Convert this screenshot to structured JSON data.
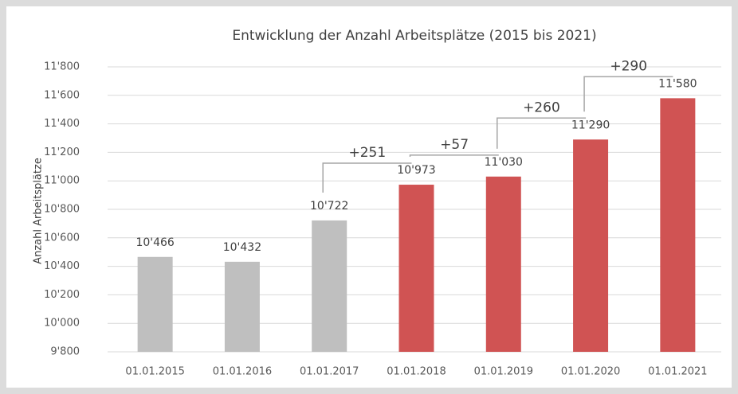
{
  "chart_data": {
    "type": "bar",
    "title": "Entwicklung der Anzahl Arbeitsplätze (2015 bis 2021)",
    "y_label": "Anzahl Arbeitsplätze",
    "categories": [
      "01.01.2015",
      "01.01.2016",
      "01.01.2017",
      "01.01.2018",
      "01.01.2019",
      "01.01.2020",
      "01.01.2021"
    ],
    "values": [
      10466,
      10432,
      10722,
      10973,
      11030,
      11290,
      11580
    ],
    "value_labels": [
      "10'466",
      "10'432",
      "10'722",
      "10'973",
      "11'030",
      "11'290",
      "11'580"
    ],
    "colors": [
      "#bfbfbf",
      "#bfbfbf",
      "#bfbfbf",
      "#d05353",
      "#d05353",
      "#d05353",
      "#d05353"
    ],
    "ylim": [
      9800,
      11800
    ],
    "yticks": [
      {
        "value": 9800,
        "label": "9'800"
      },
      {
        "value": 10000,
        "label": "10'000"
      },
      {
        "value": 10200,
        "label": "10'200"
      },
      {
        "value": 10400,
        "label": "10'400"
      },
      {
        "value": 10600,
        "label": "10'600"
      },
      {
        "value": 10800,
        "label": "10'800"
      },
      {
        "value": 11000,
        "label": "11'000"
      },
      {
        "value": 11200,
        "label": "11'200"
      },
      {
        "value": 11400,
        "label": "11'400"
      },
      {
        "value": 11600,
        "label": "11'600"
      },
      {
        "value": 11800,
        "label": "11'800"
      }
    ],
    "grid": true,
    "annotations": [
      "+251",
      "+57",
      "+260",
      "+290"
    ]
  }
}
